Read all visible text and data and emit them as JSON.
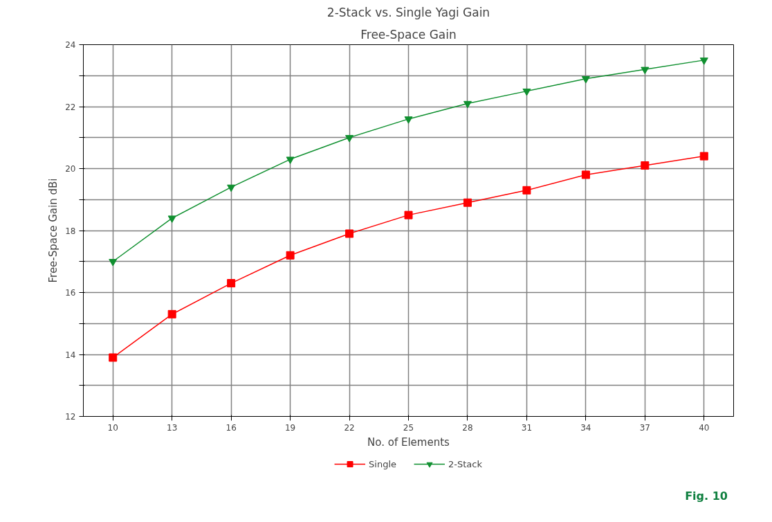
{
  "chart_data": {
    "type": "line",
    "title": "2-Stack vs. Single Yagi Gain",
    "subtitle": "Free-Space Gain",
    "xlabel": "No. of Elements",
    "ylabel": "Free-Space Gain dBi",
    "categories": [
      "10",
      "13",
      "16",
      "19",
      "22",
      "25",
      "28",
      "31",
      "34",
      "37",
      "40"
    ],
    "series": [
      {
        "name": "Single",
        "color": "#ff0000",
        "marker": "square",
        "values": [
          13.9,
          15.3,
          16.3,
          17.2,
          17.9,
          18.5,
          18.9,
          19.3,
          19.8,
          20.1,
          20.4
        ]
      },
      {
        "name": "2-Stack",
        "color": "#109030",
        "marker": "triangle",
        "values": [
          17.0,
          18.4,
          19.4,
          20.3,
          21.0,
          21.6,
          22.1,
          22.5,
          22.9,
          23.2,
          23.5
        ]
      }
    ],
    "ylim": [
      12,
      24
    ],
    "yticks": [
      12,
      {
        "value": 13,
        "label": null
      },
      14,
      {
        "value": 15,
        "label": null
      },
      16,
      {
        "value": 17,
        "label": null
      },
      18,
      {
        "value": 19,
        "label": null
      },
      20,
      {
        "value": 21,
        "label": null
      },
      22,
      {
        "value": 23,
        "label": null
      },
      24
    ],
    "grid": true,
    "legend": "bottom",
    "line_style": "solid",
    "annotations": [
      "Fig. 10"
    ]
  }
}
